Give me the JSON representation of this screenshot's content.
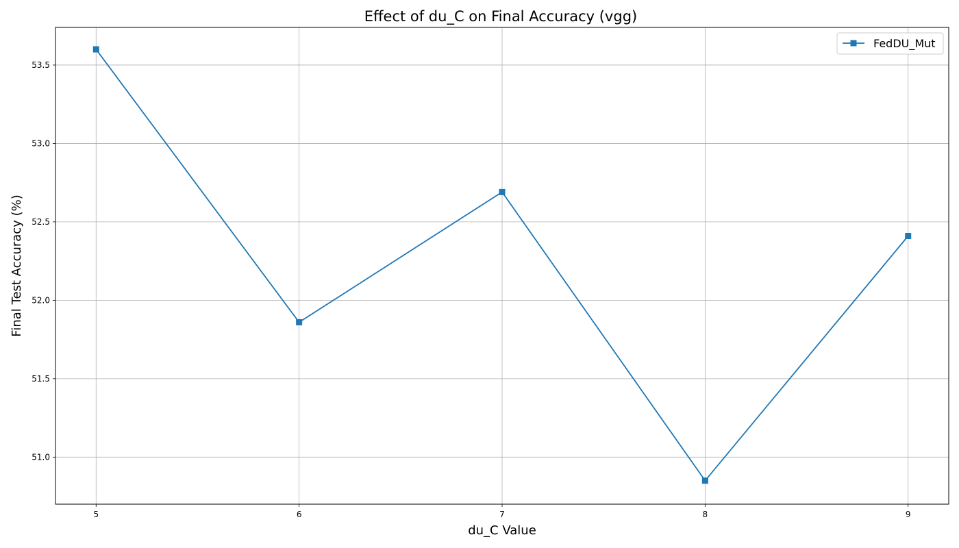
{
  "chart_data": {
    "type": "line",
    "title": "Effect of du_C on Final Accuracy (vgg)",
    "xlabel": "du_C Value",
    "ylabel": "Final Test Accuracy (%)",
    "x": [
      5,
      6,
      7,
      8,
      9
    ],
    "x_ticks": [
      "5",
      "6",
      "7",
      "8",
      "9"
    ],
    "xlim": [
      4.8,
      9.2
    ],
    "ylim": [
      50.7,
      53.74
    ],
    "y_ticks": [
      "51.0",
      "51.5",
      "52.0",
      "52.5",
      "53.0",
      "53.5"
    ],
    "y_tick_values": [
      51.0,
      51.5,
      52.0,
      52.5,
      53.0,
      53.5
    ],
    "grid": true,
    "legend_position": "top-right",
    "series": [
      {
        "name": "FedDU_Mut",
        "marker": "square",
        "color": "#1f77b4",
        "values": [
          53.6,
          51.86,
          52.69,
          50.85,
          52.41
        ]
      }
    ]
  }
}
